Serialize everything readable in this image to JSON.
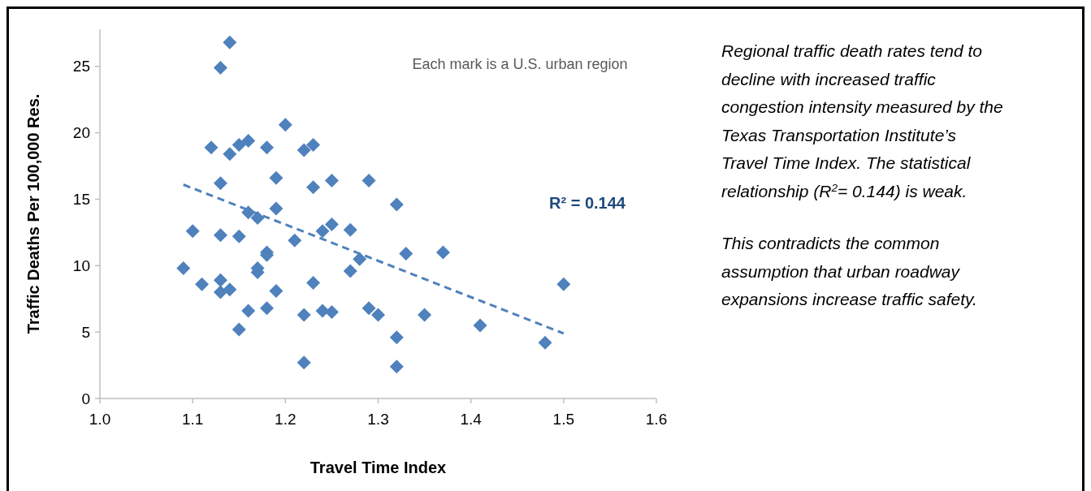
{
  "chart_data": {
    "type": "scatter",
    "xlabel": "Travel Time Index",
    "ylabel": "Traffic Deaths Per 100,000 Res.",
    "xlim": [
      1.0,
      1.6
    ],
    "xticks": [
      {
        "value": 1.0,
        "label": "1.0"
      },
      {
        "value": 1.1,
        "label": "1.1"
      },
      {
        "value": 1.2,
        "label": "1.2"
      },
      {
        "value": 1.3,
        "label": "1.3"
      },
      {
        "value": 1.4,
        "label": "1.4"
      },
      {
        "value": 1.5,
        "label": "1.5"
      },
      {
        "value": 1.6,
        "label": "1.6"
      }
    ],
    "ylim": [
      0,
      27.8
    ],
    "yticks": [
      0,
      5,
      10,
      15,
      20,
      25
    ],
    "grid": false,
    "series": [
      {
        "color": "#4f81bd",
        "marker": "diamond",
        "x": [
          1.14,
          1.13,
          1.12,
          1.14,
          1.15,
          1.16,
          1.18,
          1.2,
          1.22,
          1.23,
          1.19,
          1.23,
          1.25,
          1.29,
          1.13,
          1.16,
          1.17,
          1.19,
          1.15,
          1.13,
          1.1,
          1.18,
          1.18,
          1.21,
          1.24,
          1.25,
          1.27,
          1.28,
          1.32,
          1.33,
          1.37,
          1.27,
          1.17,
          1.17,
          1.09,
          1.11,
          1.13,
          1.13,
          1.14,
          1.19,
          1.23,
          1.16,
          1.18,
          1.22,
          1.24,
          1.25,
          1.29,
          1.3,
          1.35,
          1.15,
          1.32,
          1.22,
          1.32,
          1.41,
          1.48,
          1.5
        ],
        "values": [
          26.8,
          24.9,
          18.9,
          18.4,
          19.1,
          19.4,
          18.9,
          20.6,
          18.7,
          19.1,
          16.6,
          15.9,
          16.4,
          16.4,
          16.2,
          14.0,
          13.6,
          14.3,
          12.2,
          12.3,
          12.6,
          10.8,
          11.0,
          11.9,
          12.6,
          13.1,
          12.7,
          10.5,
          14.6,
          10.9,
          11.0,
          9.6,
          9.8,
          9.5,
          9.8,
          8.6,
          8.9,
          8.0,
          8.2,
          8.1,
          8.7,
          6.6,
          6.8,
          6.3,
          6.6,
          6.5,
          6.8,
          6.3,
          6.3,
          5.2,
          4.6,
          2.7,
          2.4,
          5.5,
          4.2,
          8.6
        ]
      },
      {
        "type": "line",
        "color": "#4f81bd",
        "marker": "none",
        "line_style": "dashed",
        "x": [
          1.09,
          1.5
        ],
        "values": [
          16.1,
          4.9
        ]
      }
    ],
    "annotations": [
      "Each mark is a U.S. urban region",
      "R² = 0.144",
      "Regional traffic death rates tend to decline with increased traffic congestion intensity measured by the Texas Transportation Institute’s Travel Time Index. The statistical relationship (R$^{2}$= 0.144) is weak.",
      "This contradicts the common assumption that urban roadway expansions increase traffic safety."
    ]
  }
}
